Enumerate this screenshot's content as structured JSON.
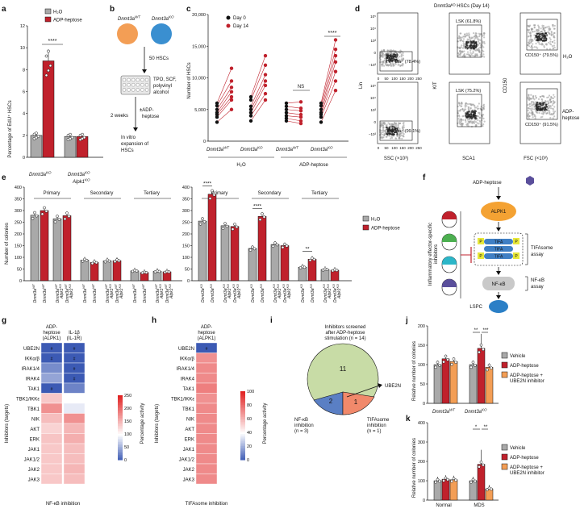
{
  "panels": {
    "a": "a",
    "b": "b",
    "c": "c",
    "d": "d",
    "e": "e",
    "f": "f",
    "g": "g",
    "h": "h",
    "i": "i",
    "j": "j",
    "k": "k"
  },
  "colors": {
    "grey": "#a9a9a9",
    "red": "#c0212c",
    "orange": "#f39e55",
    "black": "#111111",
    "green": "#c8dca6",
    "blue": "#5a7fc4",
    "salmon": "#f1896b",
    "purple": "#5a4f9b"
  },
  "legend_main": {
    "h2o": "H₂O",
    "adp": "ADP-heptose"
  },
  "legend_c": {
    "day0": "Day 0",
    "day14": "Day 14"
  },
  "sig": {
    "s4": "****",
    "s2": "**",
    "s3": "***",
    "s1": "*",
    "ns": "NS"
  },
  "genotypes": {
    "wt": "Dnmt3a",
    "wt_sup": "WT",
    "ko": "Dnmt3a",
    "ko_sup": "KO",
    "alpk": "Alpk1",
    "alpk_sup": "KO"
  },
  "chart_a": {
    "ylabel": "Percentage of EdU⁺ HSCs",
    "yticks": [
      "0",
      "2",
      "4",
      "6",
      "8",
      "10",
      "12"
    ],
    "ylim": [
      0,
      12
    ],
    "bars": [
      {
        "group": "Dnmt3a KO",
        "treatment": "H2O",
        "value": 2.0
      },
      {
        "group": "Dnmt3a KO",
        "treatment": "ADP-heptose",
        "value": 8.8
      },
      {
        "group": "Dnmt3a KO Alpk1 KO",
        "treatment": "H2O",
        "value": 1.9
      },
      {
        "group": "Dnmt3a KO Alpk1 KO",
        "treatment": "ADP-heptose",
        "value": 1.9
      }
    ]
  },
  "panel_b": {
    "wt": "Dnmt3a",
    "wt_sup": "WT",
    "ko": "Dnmt3a",
    "ko_sup": "KO",
    "hsc": "50 HSCs",
    "cyt1": "TPO, SCF,",
    "cyt2": "polyvinyl",
    "cyt3": "alcohol",
    "wk": "2 weeks",
    "adp1": "±ADP-",
    "adp2": "heptose",
    "exp1": "In vitro",
    "exp2": "expansion of",
    "exp3": "HSCs"
  },
  "chart_c": {
    "ylabel": "Number of HSCs",
    "yticks": [
      "0",
      "5,000",
      "10,000",
      "15,000",
      "20,000"
    ],
    "ylim": [
      0,
      20000
    ],
    "group_h2o": "H₂O",
    "group_adp": "ADP-heptose",
    "pairs": [
      {
        "group": "Dnmt3a WT H2O",
        "day0": [
          3000,
          3800,
          4200,
          4500,
          5000,
          5600,
          6000
        ],
        "day14": [
          5000,
          6500,
          7000,
          7800,
          8500,
          9500,
          11500
        ]
      },
      {
        "group": "Dnmt3a KO H2O",
        "day0": [
          3200,
          4000,
          4500,
          5000,
          5500,
          6500,
          7000
        ],
        "day14": [
          6500,
          7500,
          8800,
          9500,
          10500,
          12000,
          13500
        ]
      },
      {
        "group": "Dnmt3a WT ADP",
        "day0": [
          3200,
          3600,
          4000,
          4500,
          5000,
          5500,
          6000
        ],
        "day14": [
          2800,
          3200,
          3800,
          4200,
          4800,
          5200,
          6200
        ]
      },
      {
        "group": "Dnmt3a KO ADP",
        "day0": [
          3000,
          3800,
          4200,
          4500,
          5000,
          5600,
          6000
        ],
        "day14": [
          8000,
          9500,
          11000,
          12500,
          13500,
          14500,
          16000
        ]
      }
    ]
  },
  "panel_d": {
    "title": "Dnmt3aᴷᴼ HSCs (Day 14)",
    "lin_axis": "Lin",
    "kit_axis": "KIT",
    "cd150_axis": "CD150",
    "ssc_axis": "SSC (×10³)",
    "sca1_axis": "SCA1",
    "fsc_axis": "FSC (×10³)",
    "gate_lin1": "Lin⁻ (78.4%)",
    "gate_lin2": "Lin⁻ (99.1%)",
    "gate_lsk1": "LSK (61.8%)",
    "gate_lsk2": "LSK (75.2%)",
    "gate_cd1": "CD150⁺ (79.5%)",
    "gate_cd2": "CD150⁺ (91.5%)",
    "row1": "H₂O",
    "row2a": "ADP-",
    "row2b": "heptose",
    "ticks_log": [
      "10⁵",
      "10⁴",
      "10³",
      "0",
      "−10³"
    ],
    "ticks_lin": [
      "0",
      "50",
      "100",
      "150",
      "200",
      "250"
    ]
  },
  "chart_e": {
    "ylabel": "Number of colonies",
    "yticks": [
      "0",
      "50",
      "100",
      "150",
      "200",
      "250",
      "300",
      "350",
      "400"
    ],
    "ylim": [
      0,
      400
    ],
    "stages": [
      "Primary",
      "Secondary",
      "Tertiary"
    ],
    "left": [
      {
        "stage": "Primary",
        "values": [
          280,
          300,
          265,
          278
        ]
      },
      {
        "stage": "Secondary",
        "values": [
          88,
          78,
          85,
          86
        ]
      },
      {
        "stage": "Tertiary",
        "values": [
          42,
          35,
          40,
          38
        ]
      }
    ],
    "right": [
      {
        "stage": "Primary",
        "values": [
          255,
          370,
          235,
          232
        ]
      },
      {
        "stage": "Secondary",
        "values": [
          138,
          275,
          155,
          150
        ]
      },
      {
        "stage": "Tertiary",
        "values": [
          58,
          92,
          48,
          45
        ]
      }
    ]
  },
  "panel_f": {
    "adp": "ADP-heptose",
    "alpk1": "ALPK1",
    "tifa": "TIFA",
    "tifa_assay1": "TIFAsome",
    "tifa_assay2": "assay",
    "nfkb": "NF-κB",
    "nfkb_assay1": "NF-κB",
    "nfkb_assay2": "assay",
    "lspc": "LSPC",
    "inhib1": "Inflammatory effector-specific",
    "inhib2": "inhibitors",
    "p": "P"
  },
  "heat_g": {
    "col1a": "ADP-",
    "col1b": "heptose",
    "col1c": "(ALPK1)",
    "col2a": "IL-1β",
    "col2b": "(IL-1R)",
    "ylabel": "Inhibitors (targets)",
    "xlabel": "NF-κB inhibition",
    "rows": [
      "UBE2N",
      "IKKα/β",
      "IRAK1/4",
      "IRAK4",
      "TAK1",
      "TBK1/IKKε",
      "TBK1",
      "NIK",
      "AKT",
      "ERK",
      "JAK1",
      "JAK1/2",
      "JAK2",
      "JAK3"
    ],
    "col1": [
      0,
      0,
      12,
      18,
      0,
      55,
      70,
      58,
      52,
      56,
      55,
      55,
      55,
      55
    ],
    "col2": [
      0,
      0,
      0,
      0,
      10,
      40,
      35,
      70,
      60,
      62,
      58,
      58,
      60,
      58
    ],
    "hash": "#"
  },
  "heat_h": {
    "col1a": "ADP-",
    "col1b": "heptose",
    "col1c": "(ALPK1)",
    "ylabel": "Inhibitors (targets)",
    "xlabel": "TIFAsome inhibition",
    "rows": [
      "UBE2N",
      "IKKα/β",
      "IRAK1/4",
      "IRAK4",
      "TAK1",
      "TBK1/IKKε",
      "TBK1",
      "NIK",
      "AKT",
      "ERK",
      "JAK1",
      "JAK1/2",
      "JAK2",
      "JAK3"
    ],
    "col1": [
      0,
      70,
      72,
      72,
      75,
      70,
      72,
      72,
      72,
      72,
      72,
      72,
      72,
      72
    ],
    "hash": "#"
  },
  "colorbar": {
    "label": "Percentage activity",
    "ticks": [
      "250",
      "200",
      "150",
      "100",
      "50",
      "0"
    ],
    "ticks_h": [
      "100",
      "80",
      "60",
      "40",
      "20",
      "0"
    ]
  },
  "venn": {
    "title1": "Inhibitors screened",
    "title2": "after ADP-heptose",
    "title3": "stimulation (n = 14)",
    "n11": "11",
    "n2": "2",
    "n1": "1",
    "ube2n": "UBE2N",
    "nfkb1": "NF-κB",
    "nfkb2": "inhibition",
    "nfkb3": "(n = 3)",
    "tifa1": "TIFAsome",
    "tifa2": "inhibition",
    "tifa3": "(n = 1)"
  },
  "chart_j": {
    "ylabel": "Relative number of colonies",
    "yticks": [
      "0",
      "50",
      "100",
      "150",
      "200"
    ],
    "ylim": [
      0,
      200
    ],
    "legend": [
      "Vehicle",
      "ADP-heptose",
      "ADP-heptose + UBE2N inhibitor"
    ],
    "groups": [
      {
        "group": "Dnmt3a WT",
        "values": [
          100,
          115,
          108
        ]
      },
      {
        "group": "Dnmt3a KO",
        "values": [
          100,
          142,
          93
        ]
      }
    ]
  },
  "chart_k": {
    "ylabel": "Relative number of colonies",
    "yticks": [
      "0",
      "100",
      "200",
      "300",
      "400"
    ],
    "ylim": [
      0,
      400
    ],
    "legend": [
      "Vehicle",
      "ADP-heptose",
      "ADP-heptose + UBE2N inhibitor"
    ],
    "groups": [
      {
        "group": "Normal",
        "values": [
          100,
          108,
          105
        ]
      },
      {
        "group": "MDS",
        "values": [
          100,
          185,
          58
        ]
      }
    ],
    "xlabels": [
      "Normal",
      "MDS"
    ]
  }
}
